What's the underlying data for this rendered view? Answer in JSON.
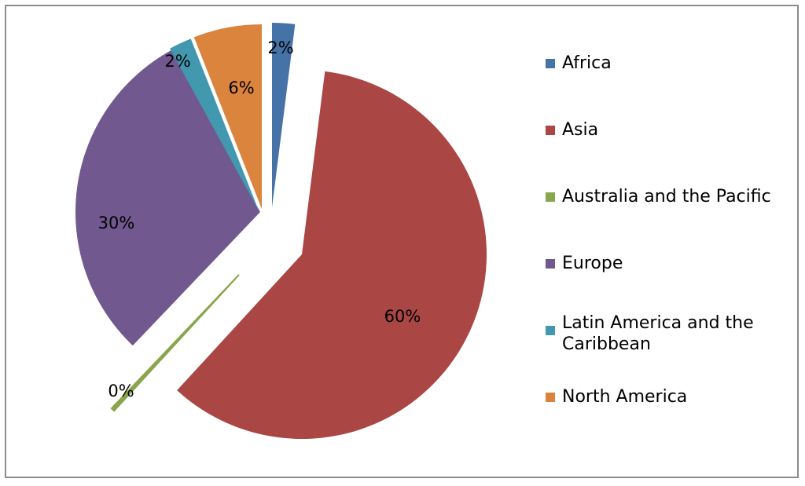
{
  "chart_data": {
    "type": "pie",
    "categories": [
      "Africa",
      "Asia",
      "Australia and the Pacific",
      "Europe",
      "Latin America and the Caribbean",
      "North America"
    ],
    "values": [
      2,
      60,
      0.3,
      30,
      2,
      6
    ],
    "data_labels": [
      "2%",
      "60%",
      "0%",
      "30%",
      "2%",
      "6%"
    ],
    "colors": [
      "#4572a7",
      "#aa4643",
      "#89a54e",
      "#71588f",
      "#4198af",
      "#db843d"
    ],
    "exploded": true,
    "legend_position": "right",
    "title": ""
  }
}
